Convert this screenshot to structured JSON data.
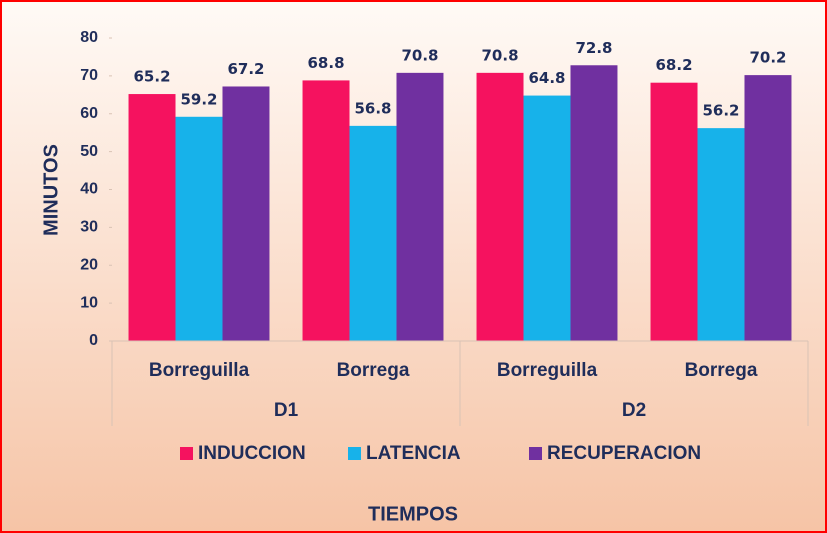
{
  "chart_data": {
    "type": "bar",
    "xlabel": "TIEMPOS",
    "ylabel": "MINUTOS",
    "categories": [
      "Borreguilla",
      "Borrega",
      "Borreguilla",
      "Borrega"
    ],
    "groups": [
      "D1",
      "D2"
    ],
    "series": [
      {
        "name": "INDUCCION",
        "color": "#f5125f",
        "values": [
          65.2,
          68.8,
          70.8,
          68.2
        ]
      },
      {
        "name": "LATENCIA",
        "color": "#17b2ea",
        "values": [
          59.2,
          56.8,
          64.8,
          56.2
        ]
      },
      {
        "name": "RECUPERACION",
        "color": "#7030a0",
        "values": [
          67.2,
          70.8,
          72.8,
          70.2
        ]
      }
    ],
    "ylim": [
      0,
      80
    ],
    "yticks": [
      0,
      10,
      20,
      30,
      40,
      50,
      60,
      70,
      80
    ]
  }
}
